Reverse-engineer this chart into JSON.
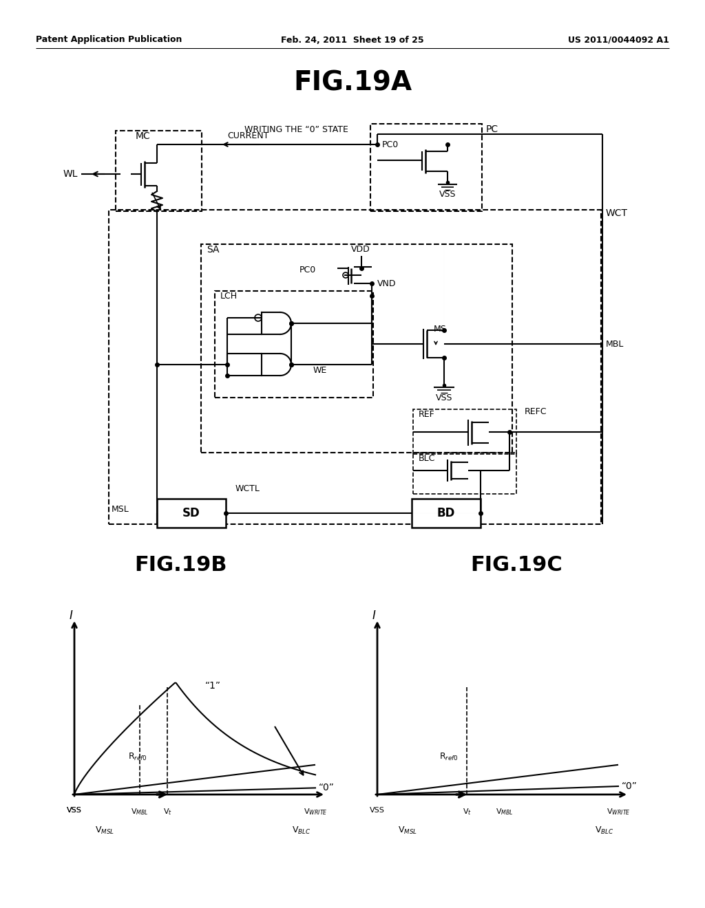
{
  "header_left": "Patent Application Publication",
  "header_mid": "Feb. 24, 2011  Sheet 19 of 25",
  "header_right": "US 2011/0044092 A1",
  "background": "#ffffff"
}
